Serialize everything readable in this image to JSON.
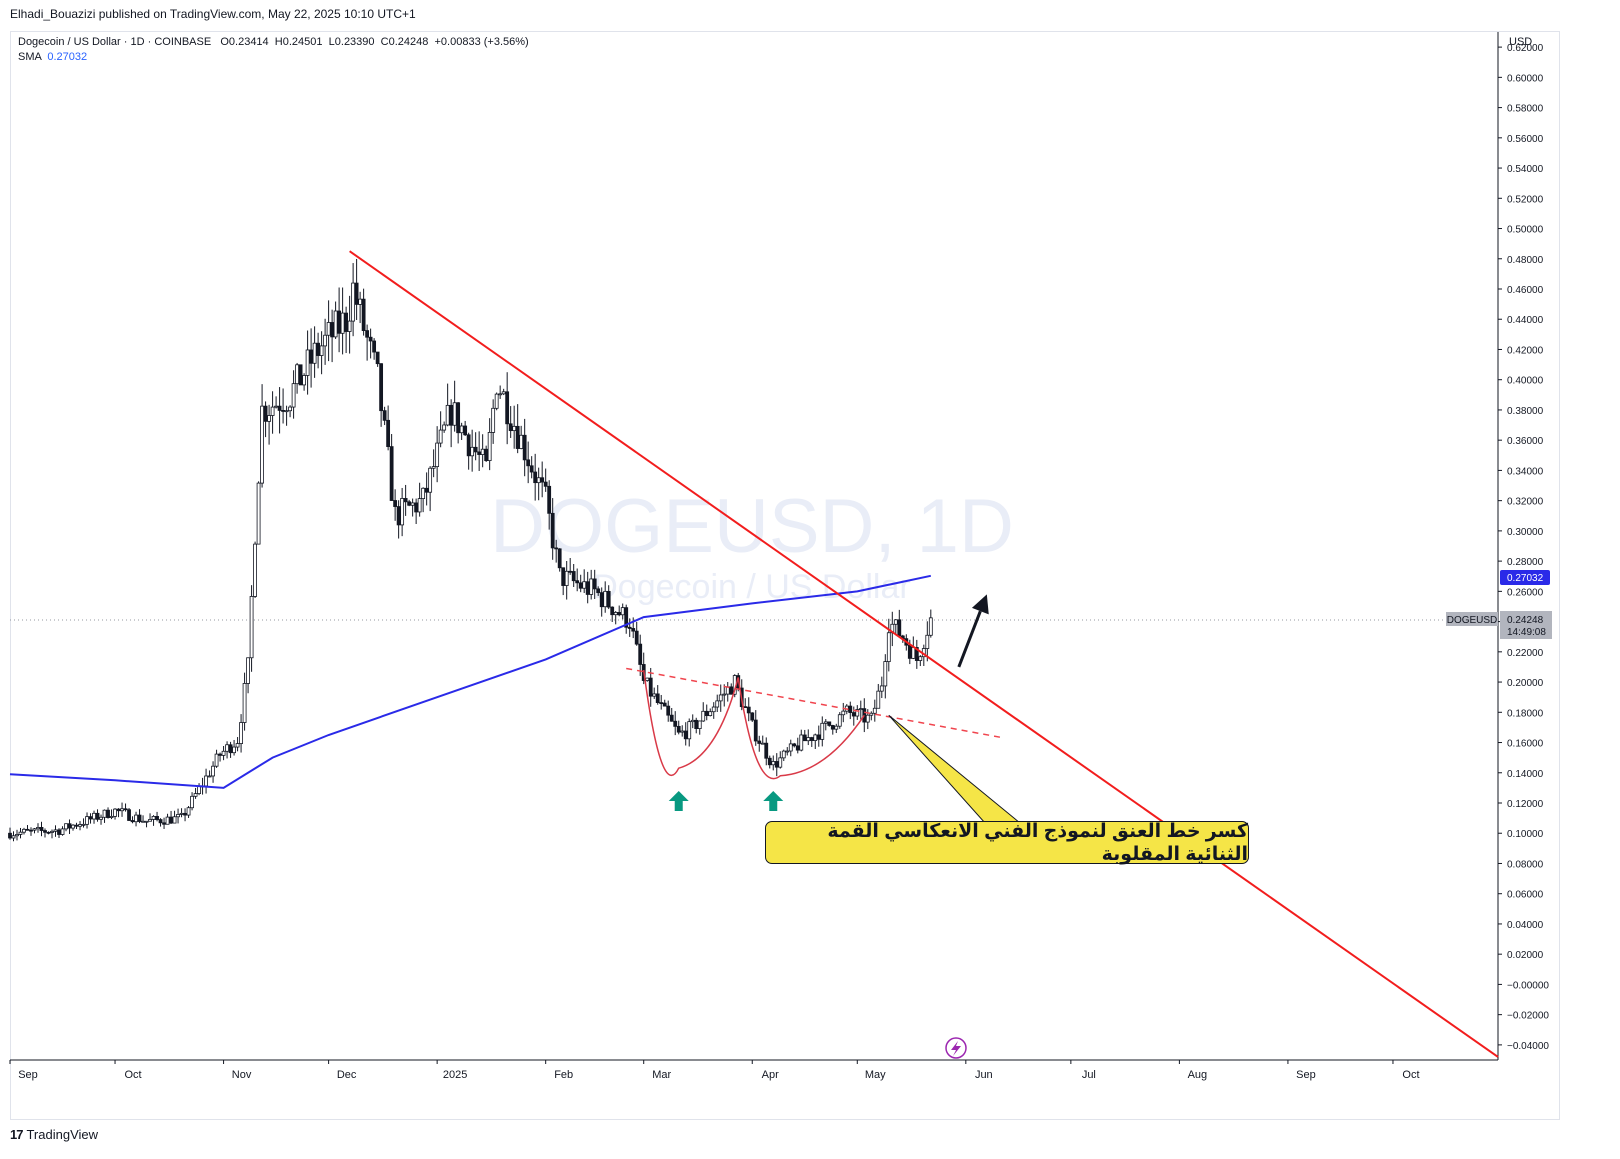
{
  "header": {
    "publisher_line": "Elhadi_Bouazizi published on TradingView.com, May 22, 2025 10:10 UTC+1",
    "symbol_line": "Dogecoin / US Dollar · 1D · COINBASE",
    "ohlc": {
      "o_label": "O",
      "o": "0.23414",
      "h_label": "H",
      "h": "0.24501",
      "l_label": "L",
      "l": "0.23390",
      "c_label": "C",
      "c": "0.24248",
      "change": "+0.00833 (+3.56%)"
    },
    "sma_label": "SMA",
    "sma_value": "0.27032"
  },
  "watermark": {
    "main": "DOGEUSD, 1D",
    "sub": "Dogecoin / US Dollar"
  },
  "annotation_text": "كسر خط العنق لنموذج الفني الانعكاسي القمة الثنائية المقلوبة",
  "footer": {
    "brand": "TradingView",
    "logo": "17"
  },
  "price_axis": {
    "currency": "USD",
    "ticks": [
      "0.62000",
      "0.60000",
      "0.58000",
      "0.56000",
      "0.54000",
      "0.52000",
      "0.50000",
      "0.48000",
      "0.46000",
      "0.44000",
      "0.42000",
      "0.40000",
      "0.38000",
      "0.36000",
      "0.34000",
      "0.32000",
      "0.30000",
      "0.28000",
      "0.26000",
      "0.24000",
      "0.22000",
      "0.20000",
      "0.18000",
      "0.16000",
      "0.14000",
      "0.12000",
      "0.10000",
      "0.08000",
      "0.06000",
      "0.04000",
      "0.02000",
      "−0.00000",
      "−0.02000",
      "−0.04000"
    ],
    "last_price_label": "0.24248",
    "countdown": "14:49:08",
    "symbol_tag": "DOGEUSD",
    "sma_label_value": "0.27032"
  },
  "time_axis": {
    "labels": [
      "Sep",
      "Oct",
      "Nov",
      "Dec",
      "2025",
      "Feb",
      "Mar",
      "Apr",
      "May",
      "Jun",
      "Jul",
      "Aug",
      "Sep",
      "Oct"
    ]
  },
  "colors": {
    "up": "#ffffff",
    "down": "#131722",
    "sma": "#2a2ae8",
    "trendline": "#f21d1d",
    "neckline": "#f0454e",
    "pattern": "#d93a48",
    "arrow_up_marker": "#089981",
    "last_price_bg": "#b2b5be",
    "sma_tag_bg": "#2a2ae8"
  },
  "chart_data": {
    "type": "candlestick",
    "symbol": "DOGEUSD",
    "interval": "1D",
    "exchange": "COINBASE",
    "ylim": [
      -0.05,
      0.63
    ],
    "x_range": [
      "2024-09-01",
      "2025-10-31"
    ],
    "grid": false,
    "close_path": [
      [
        "2024-09-01",
        0.1
      ],
      [
        "2024-09-15",
        0.102
      ],
      [
        "2024-10-01",
        0.115
      ],
      [
        "2024-10-10",
        0.108
      ],
      [
        "2024-10-20",
        0.11
      ],
      [
        "2024-10-31",
        0.152
      ],
      [
        "2024-11-05",
        0.162
      ],
      [
        "2024-11-08",
        0.21
      ],
      [
        "2024-11-10",
        0.3
      ],
      [
        "2024-11-12",
        0.38
      ],
      [
        "2024-11-20",
        0.39
      ],
      [
        "2024-11-28",
        0.42
      ],
      [
        "2024-12-06",
        0.44
      ],
      [
        "2024-12-08",
        0.46
      ],
      [
        "2024-12-15",
        0.4
      ],
      [
        "2024-12-20",
        0.31
      ],
      [
        "2024-12-28",
        0.32
      ],
      [
        "2025-01-05",
        0.38
      ],
      [
        "2025-01-15",
        0.34
      ],
      [
        "2025-01-18",
        0.4
      ],
      [
        "2025-01-25",
        0.36
      ],
      [
        "2025-02-01",
        0.32
      ],
      [
        "2025-02-05",
        0.27
      ],
      [
        "2025-02-15",
        0.26
      ],
      [
        "2025-02-25",
        0.24
      ],
      [
        "2025-03-01",
        0.2
      ],
      [
        "2025-03-11",
        0.165
      ],
      [
        "2025-03-15",
        0.17
      ],
      [
        "2025-03-27",
        0.2
      ],
      [
        "2025-04-01",
        0.17
      ],
      [
        "2025-04-07",
        0.145
      ],
      [
        "2025-04-15",
        0.16
      ],
      [
        "2025-04-22",
        0.17
      ],
      [
        "2025-04-28",
        0.18
      ],
      [
        "2025-05-05",
        0.175
      ],
      [
        "2025-05-08",
        0.2
      ],
      [
        "2025-05-10",
        0.24
      ],
      [
        "2025-05-14",
        0.23
      ],
      [
        "2025-05-18",
        0.215
      ],
      [
        "2025-05-22",
        0.24248
      ]
    ],
    "sma": {
      "name": "SMA",
      "value": 0.27032,
      "path": [
        [
          "2024-09-01",
          0.139
        ],
        [
          "2024-10-01",
          0.135
        ],
        [
          "2024-11-01",
          0.13
        ],
        [
          "2024-11-15",
          0.15
        ],
        [
          "2024-12-01",
          0.165
        ],
        [
          "2025-01-01",
          0.19
        ],
        [
          "2025-02-01",
          0.215
        ],
        [
          "2025-03-01",
          0.243
        ],
        [
          "2025-04-01",
          0.252
        ],
        [
          "2025-05-01",
          0.26
        ],
        [
          "2025-05-22",
          0.27032
        ]
      ]
    },
    "trendline": {
      "from": [
        "2024-12-07",
        0.485
      ],
      "to": [
        "2025-10-31",
        -0.048
      ]
    },
    "neckline": {
      "from": [
        "2025-02-24",
        0.209
      ],
      "to": [
        "2025-06-12",
        0.163
      ]
    },
    "annotations": [
      {
        "type": "arrow-up",
        "at": [
          "2025-03-11",
          0.12
        ]
      },
      {
        "type": "arrow-up",
        "at": [
          "2025-04-07",
          0.12
        ]
      },
      {
        "type": "arrow-trend",
        "from": [
          "2025-05-30",
          0.21
        ],
        "to": [
          "2025-06-07",
          0.258
        ]
      }
    ]
  }
}
